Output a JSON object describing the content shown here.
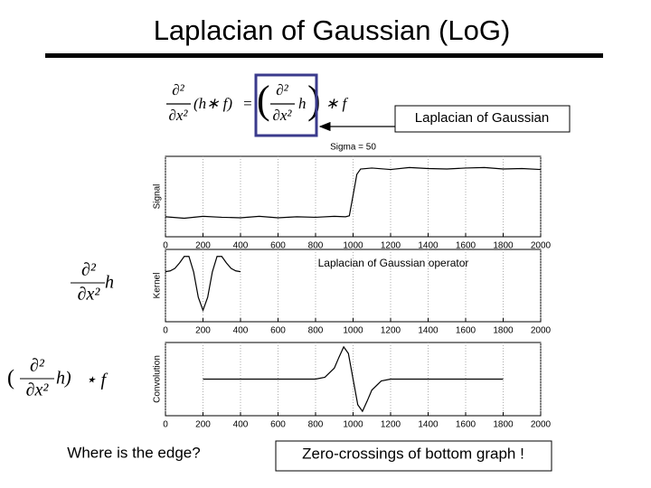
{
  "slide": {
    "title": "Laplacian of Gaussian (LoG)",
    "top_formula": [
      "∂²",
      "∂x²",
      "(h∗ f)",
      "=",
      "(",
      "∂²",
      "∂x²",
      "h",
      ")",
      "∗ f"
    ],
    "callout": "Laplacian of Gaussian",
    "kernel_formula": [
      "∂²",
      "∂x²",
      "h"
    ],
    "convolution_formula": [
      "(",
      "∂²",
      "∂x²",
      "h)",
      "⋆ f"
    ],
    "question": "Where is the edge?",
    "answer": "Zero-crossings of bottom graph !"
  },
  "chart_data": [
    {
      "type": "line",
      "title": "Sigma = 50",
      "ylabel": "Signal",
      "color": "#000000",
      "grid": true,
      "x": [
        0,
        100,
        200,
        300,
        400,
        500,
        600,
        700,
        800,
        900,
        960,
        980,
        1000,
        1020,
        1040,
        1100,
        1200,
        1300,
        1400,
        1500,
        1600,
        1700,
        1800,
        1900,
        2000
      ],
      "values": [
        0.01,
        -0.02,
        0.02,
        0,
        -0.01,
        0.02,
        -0.01,
        0.01,
        0,
        0.02,
        0.01,
        0.03,
        0.45,
        0.88,
        0.99,
        1.01,
        0.98,
        1.02,
        1,
        0.99,
        1.01,
        1.02,
        0.99,
        1,
        0.98
      ],
      "xlim": [
        0,
        2000
      ],
      "xticks": [
        0,
        200,
        400,
        600,
        800,
        1000,
        1200,
        1400,
        1600,
        1800,
        2000
      ],
      "ylim": [
        -0.4,
        1.25
      ]
    },
    {
      "type": "line",
      "annotation": "Laplacian of Gaussian operator",
      "ylabel": "Kernel",
      "color": "#000000",
      "grid": true,
      "x": [
        0,
        25,
        50,
        75,
        100,
        125,
        150,
        175,
        200,
        225,
        250,
        275,
        300,
        325,
        350,
        375,
        400
      ],
      "values": [
        0.004,
        0.019,
        0.068,
        0.178,
        0.31,
        0.31,
        0,
        -0.51,
        -0.77,
        -0.51,
        0,
        0.31,
        0.31,
        0.178,
        0.068,
        0.019,
        0.004
      ],
      "xlim": [
        0,
        2000
      ],
      "xticks": [
        0,
        200,
        400,
        600,
        800,
        1000,
        1200,
        1400,
        1600,
        1800,
        2000
      ],
      "ylim": [
        -1,
        0.45
      ]
    },
    {
      "type": "line",
      "ylabel": "Convolution",
      "color": "#000000",
      "grid": true,
      "x": [
        200,
        800,
        850,
        900,
        925,
        950,
        975,
        1000,
        1025,
        1050,
        1075,
        1100,
        1150,
        1200,
        1300,
        1800
      ],
      "values": [
        0,
        0,
        0.05,
        0.3,
        0.6,
        0.88,
        0.7,
        0,
        -0.7,
        -0.88,
        -0.6,
        -0.3,
        -0.05,
        0,
        0,
        0
      ],
      "xlim": [
        0,
        2000
      ],
      "xticks": [
        0,
        200,
        400,
        600,
        800,
        1000,
        1200,
        1400,
        1600,
        1800,
        2000
      ],
      "ylim": [
        -1,
        1
      ]
    }
  ]
}
